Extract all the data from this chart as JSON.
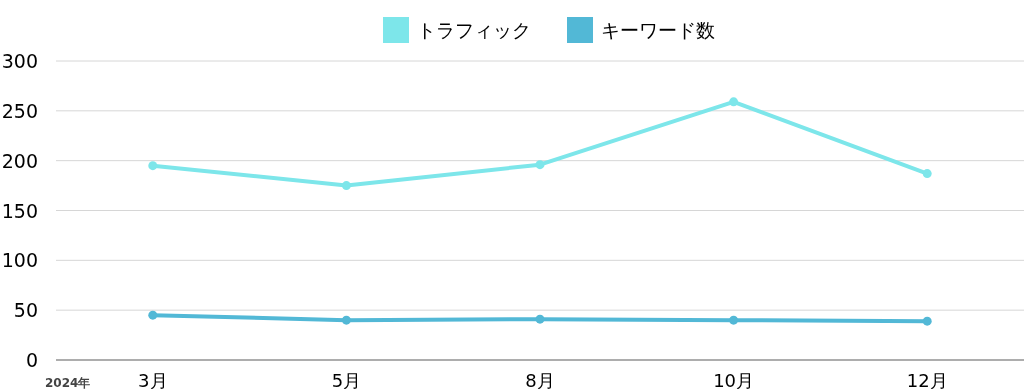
{
  "chart_data": {
    "type": "line",
    "categories": [
      "3月",
      "5月",
      "8月",
      "10月",
      "12月"
    ],
    "series": [
      {
        "name": "トラフィック",
        "color": "#7de6ea",
        "values": [
          195,
          175,
          196,
          259,
          187
        ]
      },
      {
        "name": "キーワード数",
        "color": "#52b8d6",
        "values": [
          45,
          40,
          41,
          40,
          39
        ]
      }
    ],
    "ylim": [
      0,
      300
    ],
    "yticks": [
      0,
      50,
      100,
      150,
      200,
      250,
      300
    ],
    "grid": "y",
    "legend": "top",
    "marker": "circle",
    "line_style": "solid",
    "annotations": [
      "2024年"
    ]
  }
}
